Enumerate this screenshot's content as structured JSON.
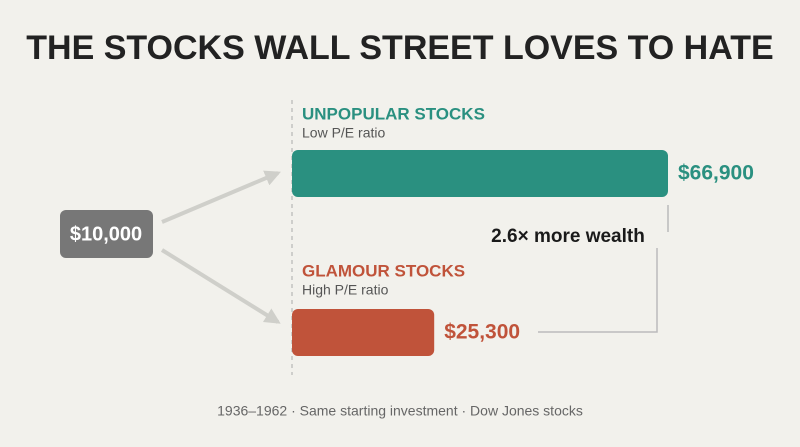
{
  "chart_data": {
    "type": "bar",
    "orientation": "horizontal",
    "title": "THE STOCKS WALL STREET LOVES TO HATE",
    "start_label": "$10,000",
    "categories": [
      "UNPOPULAR STOCKS",
      "GLAMOUR STOCKS"
    ],
    "category_subtitles": [
      "Low P/E ratio",
      "High P/E ratio"
    ],
    "values": [
      66900,
      25300
    ],
    "value_labels": [
      "$66,900",
      "$25,300"
    ],
    "colors": [
      "#2a9080",
      "#c0533a"
    ],
    "annotation": "2.6× more wealth",
    "footnote": "1936–1962 · Same starting investment · Dow Jones stocks"
  }
}
